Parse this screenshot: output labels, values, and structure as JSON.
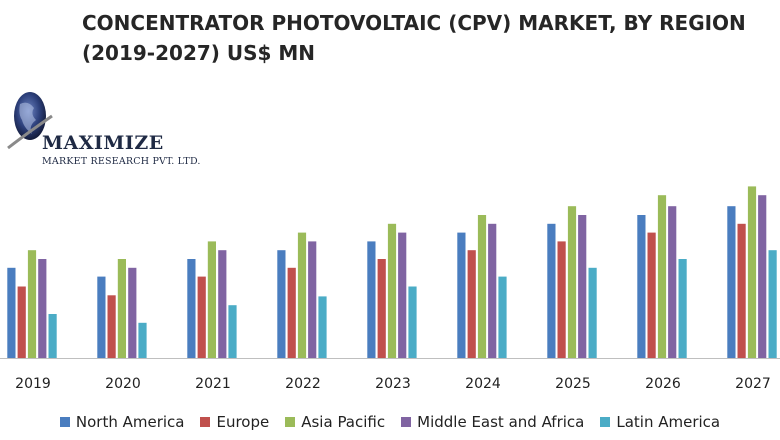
{
  "chart_data": {
    "type": "bar",
    "title": "CONCENTRATOR PHOTOVOLTAIC (CPV) MARKET, BY REGION (2019-2027) US$ MN",
    "title_line1": "CONCENTRATOR PHOTOVOLTAIC (CPV) MARKET, BY REGION",
    "title_line2": "(2019-2027) US$ MN",
    "categories": [
      "2019",
      "2020",
      "2021",
      "2022",
      "2023",
      "2024",
      "2025",
      "2026",
      "2027"
    ],
    "series": [
      {
        "name": "North America",
        "color": "#4a7dbf",
        "values": [
          82,
          74,
          90,
          98,
          106,
          114,
          122,
          130,
          138
        ]
      },
      {
        "name": "Europe",
        "color": "#c0504d",
        "values": [
          65,
          57,
          74,
          82,
          90,
          98,
          106,
          114,
          122
        ]
      },
      {
        "name": "Asia Pacific",
        "color": "#9bbb59",
        "values": [
          98,
          90,
          106,
          114,
          122,
          130,
          138,
          148,
          156
        ]
      },
      {
        "name": "Middle East and Africa",
        "color": "#8064a2",
        "values": [
          90,
          82,
          98,
          106,
          114,
          122,
          130,
          138,
          148
        ]
      },
      {
        "name": "Latin America",
        "color": "#4bacc6",
        "values": [
          40,
          32,
          48,
          56,
          65,
          74,
          82,
          90,
          98
        ]
      }
    ],
    "ylim": [
      0,
      180
    ],
    "xlabel": "",
    "ylabel": "",
    "grid": false,
    "legend_position": "bottom"
  },
  "logo": {
    "name": "MAXIMIZE",
    "sub": "MARKET RESEARCH PVT. LTD."
  }
}
